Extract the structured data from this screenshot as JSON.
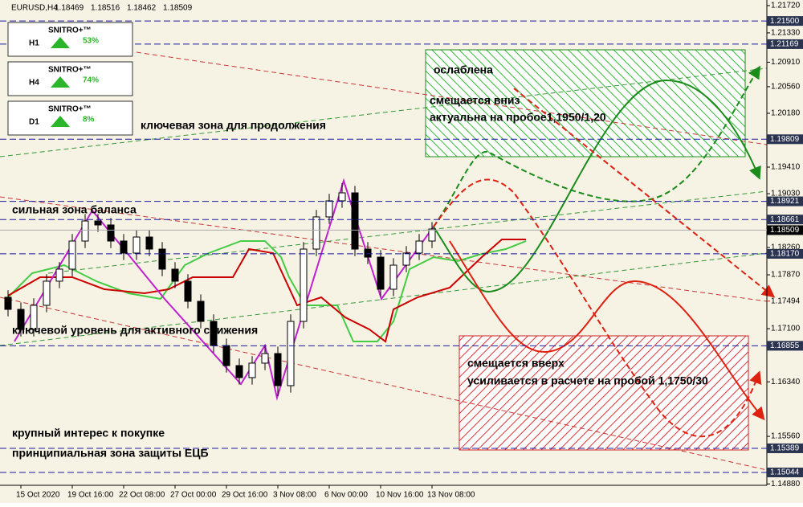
{
  "chart_data": {
    "type": "candlestick",
    "symbol": "EURUSD,H4",
    "quote": [
      "1.18469",
      "1.18516",
      "1.18462",
      "1.18509"
    ],
    "categories": [
      null,
      "15 Oct 2020",
      null,
      null,
      null,
      "19 Oct 16:00",
      null,
      null,
      null,
      "22 Oct 08:00",
      null,
      null,
      null,
      "27 Oct 00:00",
      null,
      null,
      null,
      "29 Oct 16:00",
      null,
      null,
      null,
      "3 Nov 08:00",
      null,
      null,
      null,
      "6 Nov 00:00",
      null,
      null,
      null,
      "10 Nov 16:00",
      null,
      null,
      null,
      "13 Nov 08:00"
    ],
    "open": [
      1.17549,
      1.17376,
      1.17089,
      1.17434,
      1.17779,
      1.17951,
      1.18353,
      1.1864,
      1.18583,
      1.18353,
      1.18181,
      1.1841,
      1.18238,
      1.17951,
      1.17779,
      1.17491,
      1.17204,
      1.16859,
      1.16572,
      1.164,
      1.16607,
      1.16744,
      1.16285,
      1.17204,
      1.18238,
      1.18698,
      1.18928,
      1.19042,
      1.18238,
      1.18123,
      1.17664,
      1.18008,
      1.18181,
      1.18353
    ],
    "high": [
      1.17649,
      1.17476,
      1.17534,
      1.17879,
      1.18051,
      1.18453,
      1.1874,
      1.1874,
      1.18683,
      1.18453,
      1.1851,
      1.1851,
      1.18338,
      1.18051,
      1.17879,
      1.17591,
      1.17304,
      1.16959,
      1.16672,
      1.16707,
      1.16844,
      1.16844,
      1.17304,
      1.18338,
      1.18798,
      1.19028,
      1.1918,
      1.19142,
      1.18338,
      1.18223,
      1.18108,
      1.18281,
      1.18453,
      1.18625
    ],
    "low": [
      1.17276,
      1.16989,
      1.16989,
      1.17334,
      1.17679,
      1.17851,
      1.18253,
      1.18483,
      1.18253,
      1.18081,
      1.18081,
      1.18138,
      1.17851,
      1.17679,
      1.17391,
      1.17104,
      1.16759,
      1.16472,
      1.163,
      1.163,
      1.16507,
      1.16135,
      1.16185,
      1.17104,
      1.18138,
      1.18598,
      1.18828,
      1.18138,
      1.18023,
      1.17564,
      1.17564,
      1.17908,
      1.18081,
      1.18253
    ],
    "close": [
      1.17376,
      1.17089,
      1.17434,
      1.17779,
      1.17951,
      1.18353,
      1.1864,
      1.18583,
      1.18353,
      1.18181,
      1.1841,
      1.18238,
      1.17951,
      1.17779,
      1.17491,
      1.17204,
      1.16859,
      1.16572,
      1.164,
      1.16607,
      1.16744,
      1.16285,
      1.17204,
      1.18238,
      1.18698,
      1.18928,
      1.19042,
      1.18238,
      1.18123,
      1.17664,
      1.18008,
      1.18181,
      1.18353,
      1.18525
    ],
    "ylim": [
      1.1486,
      1.218
    ],
    "yticks": [
      {
        "value": 1.2172,
        "label": "1.21720"
      },
      {
        "value": 1.2133,
        "label": "1.21330"
      },
      {
        "value": 1.2091,
        "label": "1.20910"
      },
      {
        "value": 1.2056,
        "label": "1.20560"
      },
      {
        "value": 1.2018,
        "label": "1.20180"
      },
      {
        "value": 1.1941,
        "label": "1.19410"
      },
      {
        "value": 1.1903,
        "label": "1.19030"
      },
      {
        "value": 1.1826,
        "label": "1.18260"
      },
      {
        "value": 1.1787,
        "label": "1.17870"
      },
      {
        "value": 1.171,
        "label": "1.17100"
      },
      {
        "value": 1.1634,
        "label": "1.16340"
      },
      {
        "value": 1.1556,
        "label": "1.15560"
      },
      {
        "value": 1.1488,
        "label": "1.14880"
      }
    ],
    "levels": [
      {
        "value": 1.215,
        "label": "1.21500"
      },
      {
        "value": 1.21169,
        "label": "1.21169"
      },
      {
        "value": 1.19809,
        "label": "1.19809"
      },
      {
        "value": 1.18921,
        "label": "1.18921"
      },
      {
        "value": 1.18661,
        "label": "1.18661"
      },
      {
        "value": 1.1817,
        "label": "1.18170"
      },
      {
        "value": 1.16855,
        "label": "1.16855"
      },
      {
        "value": 1.15389,
        "label": "1.15389"
      },
      {
        "value": 1.15044,
        "label": "1.15044"
      }
    ],
    "price": {
      "value": 1.18509,
      "label": "1.18509"
    },
    "target": {
      "value": 1.17494,
      "label": "1.17494"
    },
    "annotations": [
      "ключевая зона для продолжения",
      "сильная зона баланса",
      "ключевой уровень для активного снижения",
      "крупный интерес к покупке",
      "принципиальная зона защиты ЕЦБ",
      "ослаблена",
      "смещается вниз",
      "актуальна на пробое1,1950/1,20",
      "смещается вверх",
      "усиливается в расчете на пробой 1,1750/30"
    ]
  },
  "panels": [
    {
      "tf": "H1",
      "brand": "SNITRO+™",
      "percent": "53%"
    },
    {
      "tf": "H4",
      "brand": "SNITRO+™",
      "percent": "74%"
    },
    {
      "tf": "D1",
      "brand": "SNITRO+™",
      "percent": "8%"
    }
  ]
}
